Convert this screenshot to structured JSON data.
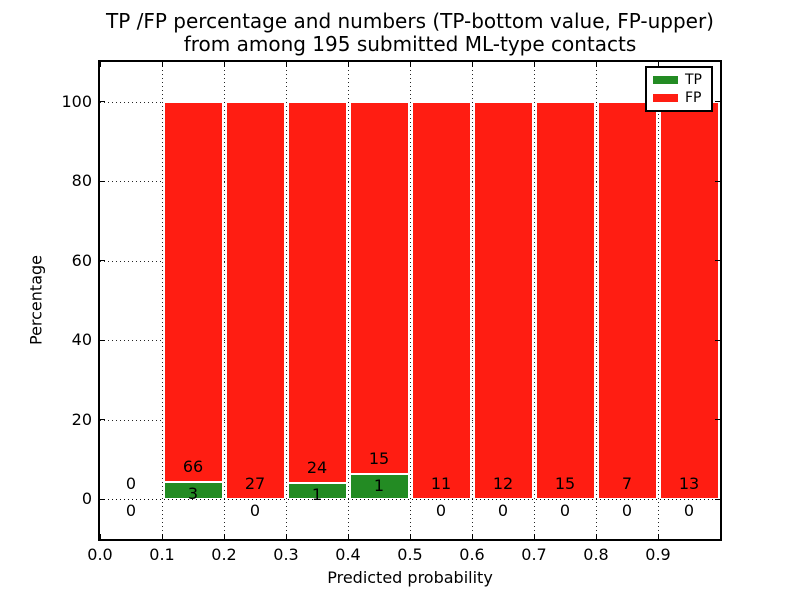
{
  "chart_data": {
    "type": "bar",
    "stacked": true,
    "normalized": "each bin scaled to 100%, TP bottom / FP top",
    "title": "TP /FP percentage and numbers (TP-bottom value, FP-upper)\nfrom among 195 submitted ML-type contacts",
    "title_line1": "TP /FP percentage and numbers (TP-bottom value, FP-upper)",
    "title_line2": "from among 195 submitted ML-type contacts",
    "xlabel": "Predicted probability",
    "ylabel": "Percentage",
    "xlim": [
      0.0,
      1.0
    ],
    "ylim": [
      -10,
      110
    ],
    "xtick_values": [
      0.0,
      0.1,
      0.2,
      0.3,
      0.4,
      0.5,
      0.6,
      0.7,
      0.8,
      0.9
    ],
    "xtick_labels": [
      "0.0",
      "0.1",
      "0.2",
      "0.3",
      "0.4",
      "0.5",
      "0.6",
      "0.7",
      "0.8",
      "0.9"
    ],
    "ytick_values": [
      0,
      20,
      40,
      60,
      80,
      100
    ],
    "ytick_labels": [
      "0",
      "20",
      "40",
      "60",
      "80",
      "100"
    ],
    "grid": true,
    "total_contacts": 195,
    "legend": {
      "position": "upper right",
      "entries": [
        {
          "label": "TP",
          "color": "#238b23"
        },
        {
          "label": "FP",
          "color": "#ff1d12"
        }
      ]
    },
    "bins": [
      {
        "range": [
          0.0,
          0.1
        ],
        "tp": 0,
        "fp": 0
      },
      {
        "range": [
          0.1,
          0.2
        ],
        "tp": 3,
        "fp": 66
      },
      {
        "range": [
          0.2,
          0.3
        ],
        "tp": 0,
        "fp": 27
      },
      {
        "range": [
          0.3,
          0.4
        ],
        "tp": 1,
        "fp": 24
      },
      {
        "range": [
          0.4,
          0.5
        ],
        "tp": 1,
        "fp": 15
      },
      {
        "range": [
          0.5,
          0.6
        ],
        "tp": 0,
        "fp": 11
      },
      {
        "range": [
          0.6,
          0.7
        ],
        "tp": 0,
        "fp": 12
      },
      {
        "range": [
          0.7,
          0.8
        ],
        "tp": 0,
        "fp": 15
      },
      {
        "range": [
          0.8,
          0.9
        ],
        "tp": 0,
        "fp": 7
      },
      {
        "range": [
          0.9,
          1.0
        ],
        "tp": 0,
        "fp": 13
      }
    ]
  }
}
